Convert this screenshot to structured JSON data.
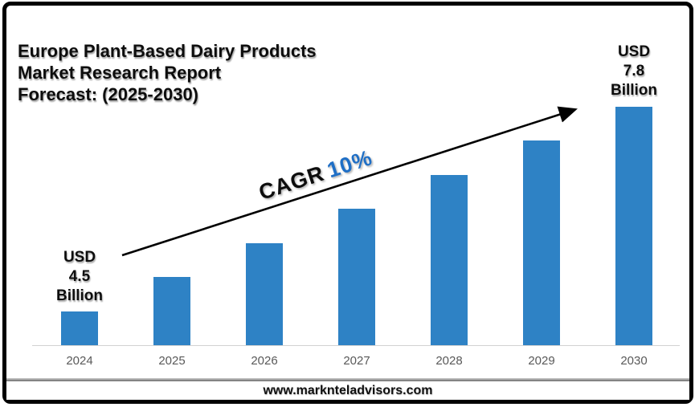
{
  "title": {
    "line1": "Europe Plant-Based Dairy Products",
    "line2": "Market Research Report",
    "line3": "Forecast: (2025-2030)"
  },
  "chart_data": {
    "type": "bar",
    "title": "Europe Plant-Based Dairy Products Market Research Report Forecast: (2025-2030)",
    "categories": [
      "2024",
      "2025",
      "2026",
      "2027",
      "2028",
      "2029",
      "2030"
    ],
    "values": [
      4.5,
      5.05,
      5.6,
      6.15,
      6.7,
      7.25,
      7.8
    ],
    "unit": "USD Billion",
    "labeled_points": {
      "2024": "USD 4.5 Billion",
      "2030": "USD 7.8 Billion"
    },
    "cagr": "10%",
    "xlabel": "",
    "ylabel": "",
    "grid": false,
    "legend": false
  },
  "annotations": {
    "start": {
      "line1": "USD",
      "line2": "4.5",
      "line3": "Billion"
    },
    "end": {
      "line1": "USD",
      "line2": "7.8",
      "line3": "Billion"
    },
    "cagr_label": "CAGR",
    "cagr_value": "10%"
  },
  "footer": {
    "url": "www.marknteladvisors.com"
  },
  "colors": {
    "bar": "#2E82C5",
    "cagr_blue": "#1F6FC6",
    "year_label": "#595959",
    "axis_line": "#D2D2D2",
    "arrow": "#000000"
  }
}
